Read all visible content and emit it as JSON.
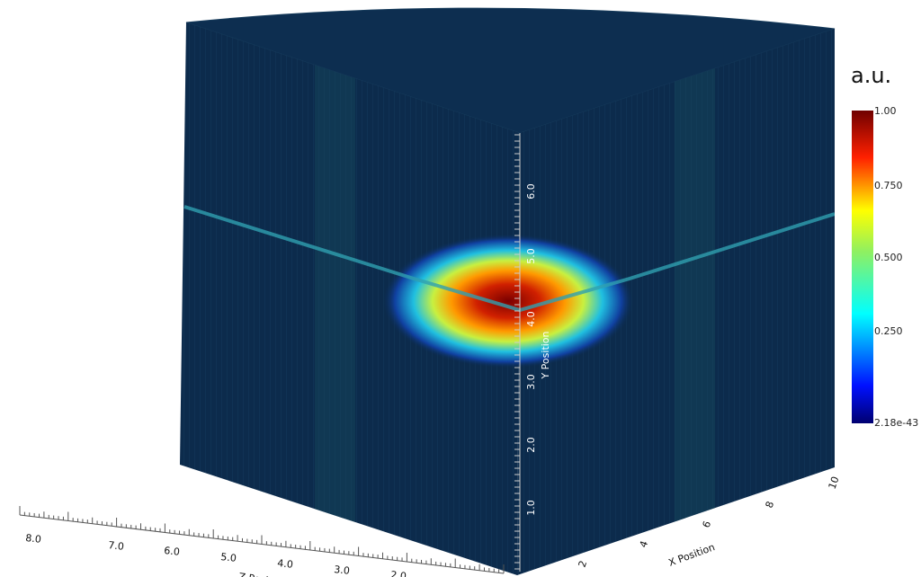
{
  "chart_data": {
    "type": "heatmap",
    "title": "",
    "render": "3D volume slice view",
    "colorbar": {
      "title": "a.u.",
      "min_label": "2.18e-43",
      "max_label": "1.00",
      "tick_labels": [
        "1.00",
        "0.750",
        "0.500",
        "0.250",
        "2.18e-43"
      ],
      "range": [
        2.18e-43,
        1.0
      ],
      "colormap": "jet"
    },
    "y_axis": {
      "label": "Y Position",
      "tick_labels": [
        "1.0",
        "2.0",
        "3.0",
        "4.0",
        "5.0",
        "6.0"
      ]
    },
    "z_axis": {
      "label": "Z Position",
      "tick_labels": [
        "8.0",
        "7.0",
        "6.0",
        "5.0",
        "4.0",
        "3.0",
        "2.0"
      ]
    },
    "x_axis": {
      "label": "X Position",
      "tick_labels": [
        "2",
        "4",
        "6",
        "8",
        "10"
      ]
    },
    "colors": {
      "background": "#ffffff",
      "volume_low": "#0b2a4a",
      "axis_text": "#ffffff"
    }
  }
}
